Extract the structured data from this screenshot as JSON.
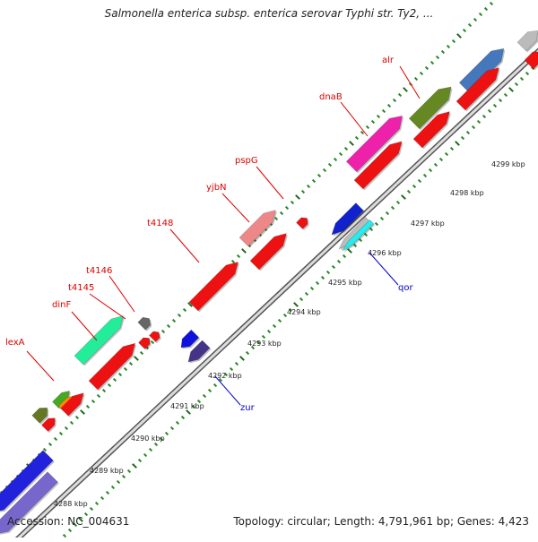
{
  "title": "Salmonella enterica subsp. enterica serovar Typhi str. Ty2, ...",
  "footer": {
    "accession": "Accession: NC_004631",
    "topology": "Topology: circular; Length: 4,791,961 bp; Genes: 4,423"
  },
  "colors": {
    "backbone": "#888888",
    "tick_minor": "#2a8a2a",
    "tick_major": "#333333",
    "forward_label": "#dd0000",
    "reverse_label": "#0000cc",
    "red_gene": "#ee1111"
  },
  "kbp_ticks": [
    "4288 kbp",
    "4289 kbp",
    "4290 kbp",
    "4291 kbp",
    "4292 kbp",
    "4293 kbp",
    "4294 kbp",
    "4295 kbp",
    "4296 kbp",
    "4297 kbp",
    "4298 kbp",
    "4299 kbp"
  ],
  "forward_gene_labels": [
    "lexA",
    "dinF",
    "t4145",
    "t4146",
    "t4148",
    "yjbN",
    "pspG",
    "dnaB",
    "alr"
  ],
  "reverse_gene_labels": [
    "zur",
    "qor"
  ]
}
